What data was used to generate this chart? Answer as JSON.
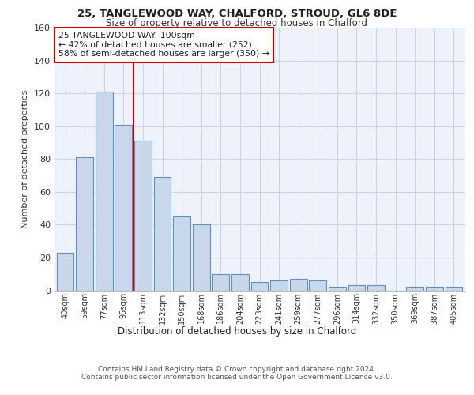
{
  "title1": "25, TANGLEWOOD WAY, CHALFORD, STROUD, GL6 8DE",
  "title2": "Size of property relative to detached houses in Chalford",
  "xlabel": "Distribution of detached houses by size in Chalford",
  "ylabel": "Number of detached properties",
  "bar_labels": [
    "40sqm",
    "59sqm",
    "77sqm",
    "95sqm",
    "113sqm",
    "132sqm",
    "150sqm",
    "168sqm",
    "186sqm",
    "204sqm",
    "223sqm",
    "241sqm",
    "259sqm",
    "277sqm",
    "296sqm",
    "314sqm",
    "332sqm",
    "350sqm",
    "369sqm",
    "387sqm",
    "405sqm"
  ],
  "bar_values": [
    23,
    81,
    121,
    101,
    91,
    69,
    45,
    40,
    10,
    10,
    5,
    6,
    7,
    6,
    2,
    3,
    3,
    0,
    2,
    2,
    2
  ],
  "bar_color": "#c8d8ea",
  "bar_edge_color": "#6090c0",
  "grid_color": "#ccd4e8",
  "background_color": "#eef2fa",
  "vline_x": 3.5,
  "vline_color": "#cc0000",
  "annotation_text": "25 TANGLEWOOD WAY: 100sqm\n← 42% of detached houses are smaller (252)\n58% of semi-detached houses are larger (350) →",
  "annotation_box_color": "#ffffff",
  "annotation_box_edge": "#cc0000",
  "ylim": [
    0,
    160
  ],
  "yticks": [
    0,
    20,
    40,
    60,
    80,
    100,
    120,
    140,
    160
  ],
  "footer": "Contains HM Land Registry data © Crown copyright and database right 2024.\nContains public sector information licensed under the Open Government Licence v3.0."
}
